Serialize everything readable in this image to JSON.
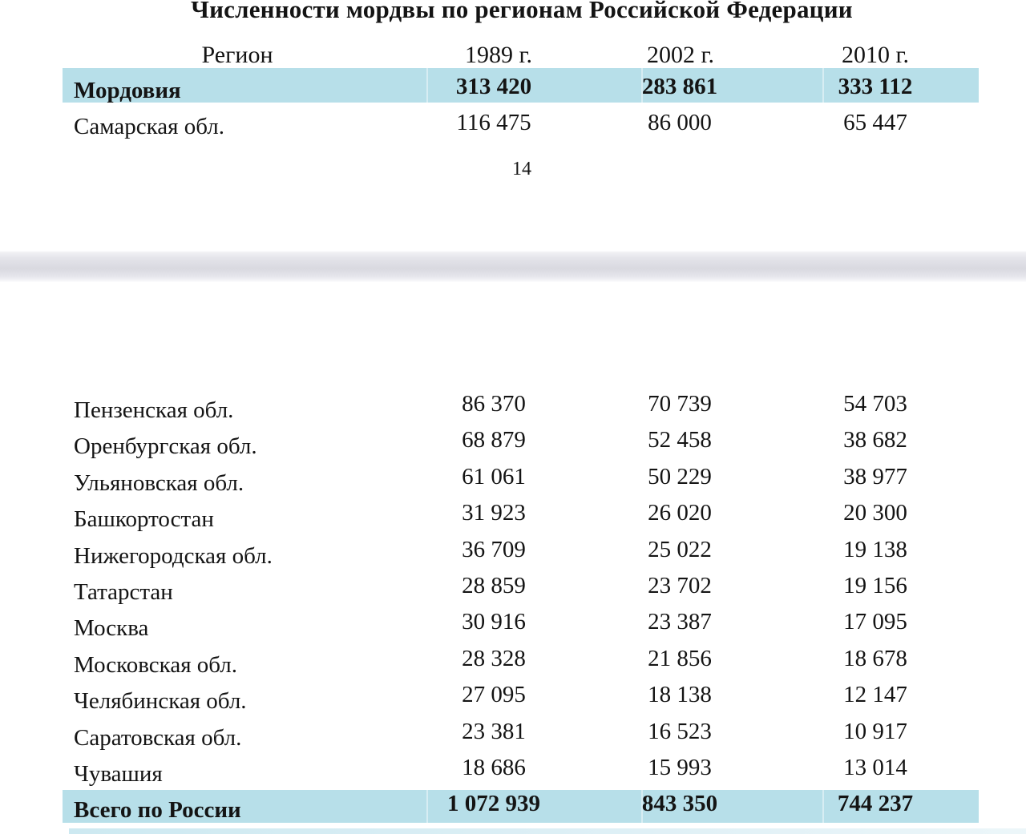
{
  "document": {
    "title": "Численности мордвы по регионам Российской Федерации",
    "page_number": "14",
    "columns": [
      "Регион",
      "1989 г.",
      "2002 г.",
      "2010 г."
    ],
    "page1_rows": [
      {
        "region": "Мордовия",
        "v1989": "313 420",
        "v2002": "283 861",
        "v2010": "333 112",
        "highlight": true
      },
      {
        "region": "Самарская обл.",
        "v1989": "116 475",
        "v2002": "86 000",
        "v2010": "65 447",
        "highlight": false
      }
    ],
    "page2_rows": [
      {
        "region": "Пензенская обл.",
        "v1989": "86 370",
        "v2002": "70 739",
        "v2010": "54 703"
      },
      {
        "region": "Оренбургская обл.",
        "v1989": "68 879",
        "v2002": "52 458",
        "v2010": "38 682"
      },
      {
        "region": "Ульяновская обл.",
        "v1989": "61 061",
        "v2002": "50 229",
        "v2010": "38 977"
      },
      {
        "region": "Башкортостан",
        "v1989": "31 923",
        "v2002": "26 020",
        "v2010": "20 300"
      },
      {
        "region": "Нижегородская обл.",
        "v1989": "36 709",
        "v2002": "25 022",
        "v2010": "19 138"
      },
      {
        "region": "Татарстан",
        "v1989": "28 859",
        "v2002": "23 702",
        "v2010": "19 156"
      },
      {
        "region": "Москва",
        "v1989": "30 916",
        "v2002": "23 387",
        "v2010": "17 095"
      },
      {
        "region": "Московская обл.",
        "v1989": "28 328",
        "v2002": "21 856",
        "v2010": "18 678"
      },
      {
        "region": "Челябинская обл.",
        "v1989": "27 095",
        "v2002": "18 138",
        "v2010": "12 147"
      },
      {
        "region": "Саратовская обл.",
        "v1989": "23 381",
        "v2002": "16 523",
        "v2010": "10 917"
      },
      {
        "region": "Чувашия",
        "v1989": "18 686",
        "v2002": "15 993",
        "v2010": "13 014"
      }
    ],
    "total_row": {
      "region": "Всего по России",
      "v1989": "1 072 939",
      "v2002": "843 350",
      "v2010": "744 237",
      "highlight": true
    },
    "colors": {
      "row_highlight": "#b7dfe9",
      "bottom_strip": "#cde9f1",
      "page_gap_mid": "#d9d9e0",
      "text": "#141414"
    }
  }
}
